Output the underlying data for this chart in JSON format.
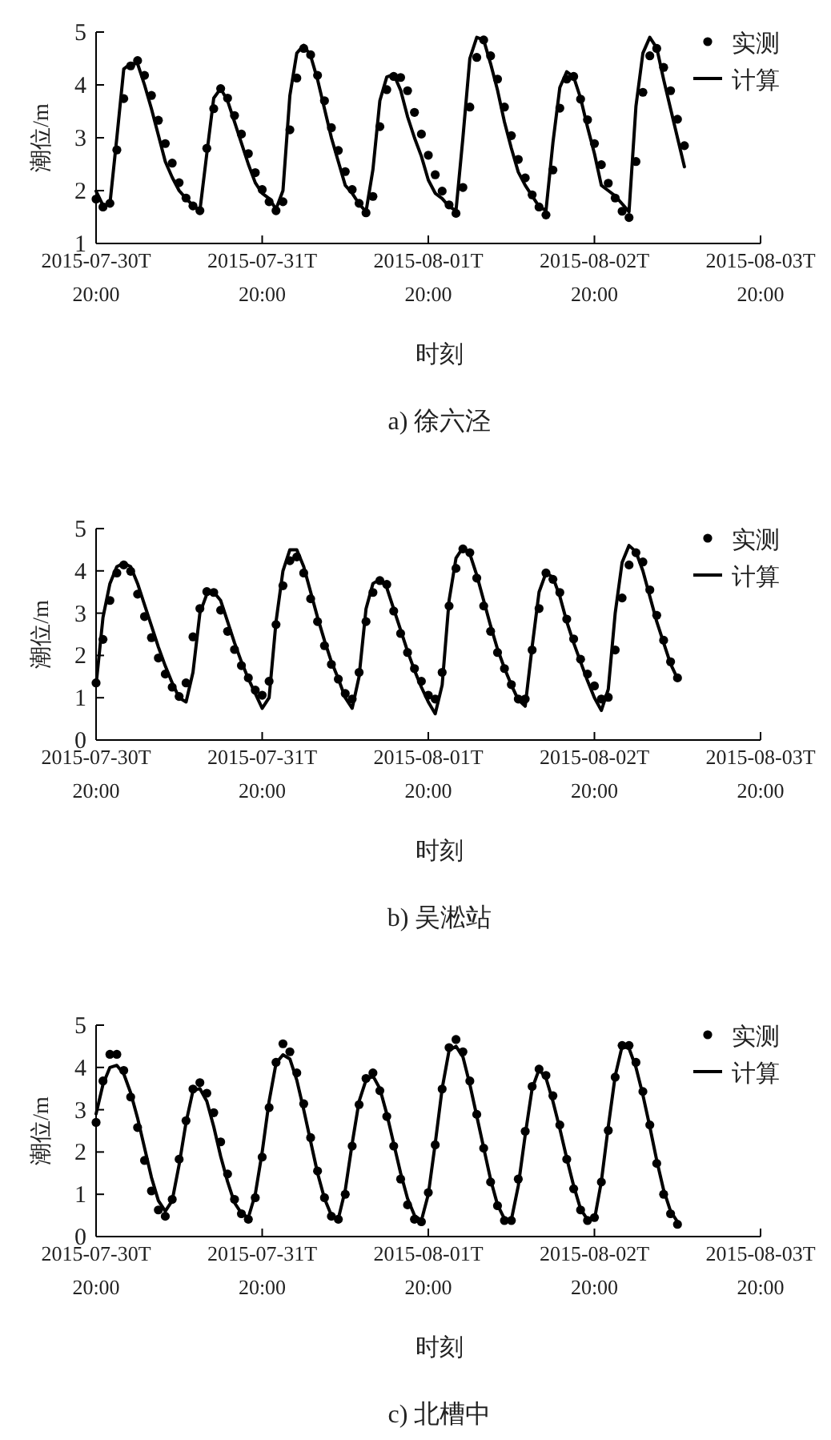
{
  "chart_data": [
    {
      "type": "line",
      "title": "a) 徐六泾",
      "xlabel": "时刻",
      "ylabel": "潮位/m",
      "legend": "top right",
      "x": [
        "2015-07-30T20:00",
        "2015-07-30T21:00",
        "2015-07-30T22:00",
        "2015-07-30T23:00",
        "2015-07-31T00:00",
        "2015-07-31T01:00",
        "2015-07-31T02:00",
        "2015-07-31T03:00",
        "2015-07-31T04:00",
        "2015-07-31T05:00",
        "2015-07-31T06:00",
        "2015-07-31T07:00",
        "2015-07-31T08:00",
        "2015-07-31T09:00",
        "2015-07-31T10:00",
        "2015-07-31T11:00",
        "2015-07-31T12:00",
        "2015-07-31T13:00",
        "2015-07-31T14:00",
        "2015-07-31T15:00",
        "2015-07-31T16:00",
        "2015-07-31T17:00",
        "2015-07-31T18:00",
        "2015-07-31T19:00",
        "2015-07-31T20:00",
        "2015-07-31T21:00",
        "2015-07-31T22:00",
        "2015-07-31T23:00",
        "2015-08-01T00:00",
        "2015-08-01T01:00",
        "2015-08-01T02:00",
        "2015-08-01T03:00",
        "2015-08-01T04:00",
        "2015-08-01T05:00",
        "2015-08-01T06:00",
        "2015-08-01T07:00",
        "2015-08-01T08:00",
        "2015-08-01T09:00",
        "2015-08-01T10:00",
        "2015-08-01T11:00",
        "2015-08-01T12:00",
        "2015-08-01T13:00",
        "2015-08-01T14:00",
        "2015-08-01T15:00",
        "2015-08-01T16:00",
        "2015-08-01T17:00",
        "2015-08-01T18:00",
        "2015-08-01T19:00",
        "2015-08-01T20:00",
        "2015-08-01T21:00",
        "2015-08-01T22:00",
        "2015-08-01T23:00",
        "2015-08-02T00:00",
        "2015-08-02T01:00",
        "2015-08-02T02:00",
        "2015-08-02T03:00",
        "2015-08-02T04:00",
        "2015-08-02T05:00",
        "2015-08-02T06:00",
        "2015-08-02T07:00",
        "2015-08-02T08:00",
        "2015-08-02T09:00",
        "2015-08-02T10:00",
        "2015-08-02T11:00",
        "2015-08-02T12:00",
        "2015-08-02T13:00",
        "2015-08-02T14:00",
        "2015-08-02T15:00",
        "2015-08-02T16:00",
        "2015-08-02T17:00",
        "2015-08-02T18:00",
        "2015-08-02T19:00",
        "2015-08-02T20:00",
        "2015-08-02T21:00",
        "2015-08-02T22:00",
        "2015-08-02T23:00",
        "2015-08-03T00:00",
        "2015-08-03T01:00",
        "2015-08-03T02:00",
        "2015-08-03T03:00",
        "2015-08-03T04:00",
        "2015-08-03T05:00",
        "2015-08-03T06:00",
        "2015-08-03T07:00",
        "2015-08-03T08:00",
        "2015-08-03T09:00"
      ],
      "xlim": [
        "2015-07-30T20:00",
        "2015-08-03T20:00"
      ],
      "xticks": [
        {
          "value": "2015-07-30T20:00",
          "label": "2015-07-30T 20:00"
        },
        {
          "value": "2015-07-31T20:00",
          "label": "2015-07-31T 20:00"
        },
        {
          "value": "2015-08-01T20:00",
          "label": "2015-08-01T 20:00"
        },
        {
          "value": "2015-08-02T20:00",
          "label": "2015-08-02T 20:00"
        },
        {
          "value": "2015-08-03T20:00",
          "label": "2015-08-03T 20:00"
        }
      ],
      "ylim": [
        1,
        5
      ],
      "yticks": [
        1,
        2,
        3,
        4,
        5
      ],
      "series": [
        {
          "name": "实测",
          "type": "scatter",
          "marker": "circle",
          "color": "#000000",
          "values": [
            1.84,
            1.69,
            1.76,
            2.77,
            3.74,
            4.36,
            4.46,
            4.18,
            3.8,
            3.33,
            2.89,
            2.52,
            2.15,
            1.86,
            1.71,
            1.62,
            2.8,
            3.55,
            3.93,
            3.75,
            3.42,
            3.07,
            2.7,
            2.34,
            2.02,
            1.79,
            1.62,
            1.79,
            3.15,
            4.13,
            4.69,
            4.57,
            4.18,
            3.7,
            3.19,
            2.76,
            2.36,
            2.02,
            1.76,
            1.58,
            1.89,
            3.21,
            3.91,
            4.16,
            4.14,
            3.89,
            3.48,
            3.07,
            2.67,
            2.3,
            1.99,
            1.73,
            1.57,
            2.06,
            3.58,
            4.52,
            4.85,
            4.55,
            4.11,
            3.58,
            3.04,
            2.59,
            2.24,
            1.92,
            1.69,
            1.54,
            2.39,
            3.56,
            4.11,
            4.16,
            3.73,
            3.34,
            2.89,
            2.49,
            2.14,
            1.86,
            1.61,
            1.49,
            2.55,
            3.86,
            4.55,
            4.69,
            4.33,
            3.89,
            3.35,
            2.85
          ]
        },
        {
          "name": "计算",
          "type": "line",
          "color": "#000000",
          "line_style": "solid",
          "values": [
            1.99,
            1.72,
            1.75,
            3.0,
            4.3,
            4.4,
            4.4,
            4.0,
            3.55,
            3.05,
            2.55,
            2.25,
            2.0,
            1.85,
            1.72,
            1.62,
            2.7,
            3.75,
            3.93,
            3.7,
            3.3,
            2.9,
            2.5,
            2.15,
            1.95,
            1.85,
            1.65,
            2.0,
            3.8,
            4.6,
            4.75,
            4.55,
            4.1,
            3.55,
            3.0,
            2.55,
            2.1,
            1.95,
            1.75,
            1.6,
            2.4,
            3.7,
            4.15,
            4.2,
            3.9,
            3.4,
            3.0,
            2.65,
            2.2,
            1.95,
            1.85,
            1.7,
            1.62,
            3.0,
            4.5,
            4.9,
            4.85,
            4.4,
            3.9,
            3.3,
            2.8,
            2.35,
            2.1,
            1.9,
            1.7,
            1.62,
            2.9,
            3.95,
            4.25,
            4.15,
            3.75,
            3.2,
            2.7,
            2.1,
            2.0,
            1.9,
            1.75,
            1.6,
            3.6,
            4.6,
            4.9,
            4.7,
            4.1,
            3.55,
            3.0,
            2.45
          ]
        }
      ]
    },
    {
      "type": "line",
      "title": "b) 吴淞站",
      "xlabel": "时刻",
      "ylabel": "潮位/m",
      "legend": "top right",
      "x": [
        "2015-07-30T20:00",
        "2015-07-30T21:00",
        "2015-07-30T22:00",
        "2015-07-30T23:00",
        "2015-07-31T00:00",
        "2015-07-31T01:00",
        "2015-07-31T02:00",
        "2015-07-31T03:00",
        "2015-07-31T04:00",
        "2015-07-31T05:00",
        "2015-07-31T06:00",
        "2015-07-31T07:00",
        "2015-07-31T08:00",
        "2015-07-31T09:00",
        "2015-07-31T10:00",
        "2015-07-31T11:00",
        "2015-07-31T12:00",
        "2015-07-31T13:00",
        "2015-07-31T14:00",
        "2015-07-31T15:00",
        "2015-07-31T16:00",
        "2015-07-31T17:00",
        "2015-07-31T18:00",
        "2015-07-31T19:00",
        "2015-07-31T20:00",
        "2015-07-31T21:00",
        "2015-07-31T22:00",
        "2015-07-31T23:00",
        "2015-08-01T00:00",
        "2015-08-01T01:00",
        "2015-08-01T02:00",
        "2015-08-01T03:00",
        "2015-08-01T04:00",
        "2015-08-01T05:00",
        "2015-08-01T06:00",
        "2015-08-01T07:00",
        "2015-08-01T08:00",
        "2015-08-01T09:00",
        "2015-08-01T10:00",
        "2015-08-01T11:00",
        "2015-08-01T12:00",
        "2015-08-01T13:00",
        "2015-08-01T14:00",
        "2015-08-01T15:00",
        "2015-08-01T16:00",
        "2015-08-01T17:00",
        "2015-08-01T18:00",
        "2015-08-01T19:00",
        "2015-08-01T20:00",
        "2015-08-01T21:00",
        "2015-08-01T22:00",
        "2015-08-01T23:00",
        "2015-08-02T00:00",
        "2015-08-02T01:00",
        "2015-08-02T02:00",
        "2015-08-02T03:00",
        "2015-08-02T04:00",
        "2015-08-02T05:00",
        "2015-08-02T06:00",
        "2015-08-02T07:00",
        "2015-08-02T08:00",
        "2015-08-02T09:00",
        "2015-08-02T10:00",
        "2015-08-02T11:00",
        "2015-08-02T12:00",
        "2015-08-02T13:00",
        "2015-08-02T14:00",
        "2015-08-02T15:00",
        "2015-08-02T16:00",
        "2015-08-02T17:00",
        "2015-08-02T18:00",
        "2015-08-02T19:00",
        "2015-08-02T20:00",
        "2015-08-02T21:00",
        "2015-08-02T22:00",
        "2015-08-02T23:00",
        "2015-08-03T00:00",
        "2015-08-03T01:00",
        "2015-08-03T02:00",
        "2015-08-03T03:00",
        "2015-08-03T04:00",
        "2015-08-03T05:00",
        "2015-08-03T06:00",
        "2015-08-03T07:00",
        "2015-08-03T08:00"
      ],
      "xlim": [
        "2015-07-30T20:00",
        "2015-08-03T20:00"
      ],
      "xticks": [
        {
          "value": "2015-07-30T20:00",
          "label": "2015-07-30T 20:00"
        },
        {
          "value": "2015-07-31T20:00",
          "label": "2015-07-31T 20:00"
        },
        {
          "value": "2015-08-01T20:00",
          "label": "2015-08-01T 20:00"
        },
        {
          "value": "2015-08-02T20:00",
          "label": "2015-08-02T 20:00"
        },
        {
          "value": "2015-08-03T20:00",
          "label": "2015-08-03T 20:00"
        }
      ],
      "ylim": [
        0,
        5
      ],
      "yticks": [
        0,
        1,
        2,
        3,
        4,
        5
      ],
      "series": [
        {
          "name": "实测",
          "type": "scatter",
          "marker": "circle",
          "color": "#000000",
          "values": [
            1.35,
            2.38,
            3.3,
            3.95,
            4.14,
            3.99,
            3.45,
            2.92,
            2.42,
            1.94,
            1.56,
            1.25,
            1.03,
            1.35,
            2.44,
            3.11,
            3.51,
            3.49,
            3.07,
            2.57,
            2.14,
            1.76,
            1.47,
            1.18,
            1.06,
            1.39,
            2.73,
            3.65,
            4.24,
            4.33,
            3.95,
            3.34,
            2.8,
            2.23,
            1.79,
            1.44,
            1.1,
            0.97,
            1.6,
            2.8,
            3.49,
            3.77,
            3.68,
            3.05,
            2.52,
            2.07,
            1.69,
            1.39,
            1.06,
            0.97,
            1.6,
            3.17,
            4.06,
            4.52,
            4.43,
            3.83,
            3.17,
            2.57,
            2.07,
            1.69,
            1.31,
            0.97,
            0.97,
            2.13,
            3.11,
            3.95,
            3.8,
            3.49,
            2.86,
            2.39,
            1.91,
            1.56,
            1.28,
            0.97,
            1.01,
            2.13,
            3.36,
            4.14,
            4.43,
            4.21,
            3.55,
            2.95,
            2.36,
            1.85,
            1.47
          ]
        },
        {
          "name": "计算",
          "type": "line",
          "color": "#000000",
          "line_style": "solid",
          "values": [
            1.3,
            2.9,
            3.7,
            4.1,
            4.18,
            4.1,
            3.7,
            3.2,
            2.7,
            2.2,
            1.75,
            1.35,
            1.0,
            0.9,
            1.6,
            3.0,
            3.45,
            3.5,
            3.3,
            2.8,
            2.3,
            1.85,
            1.45,
            1.1,
            0.75,
            1.0,
            2.8,
            4.0,
            4.5,
            4.5,
            4.1,
            3.5,
            2.9,
            2.35,
            1.85,
            1.45,
            1.0,
            0.75,
            1.5,
            3.1,
            3.7,
            3.8,
            3.6,
            3.1,
            2.6,
            2.1,
            1.65,
            1.25,
            0.9,
            0.62,
            1.3,
            3.3,
            4.3,
            4.55,
            4.4,
            3.9,
            3.3,
            2.7,
            2.15,
            1.7,
            1.3,
            0.95,
            0.8,
            2.2,
            3.5,
            3.95,
            3.85,
            3.4,
            2.8,
            2.3,
            1.85,
            1.4,
            1.0,
            0.7,
            1.2,
            3.0,
            4.2,
            4.6,
            4.45,
            4.0,
            3.4,
            2.8,
            2.3,
            1.8,
            1.45
          ]
        }
      ]
    },
    {
      "type": "line",
      "title": "c) 北槽中",
      "xlabel": "时刻",
      "ylabel": "潮位/m",
      "legend": "top right",
      "x": [
        "2015-07-30T20:00",
        "2015-07-30T21:00",
        "2015-07-30T22:00",
        "2015-07-30T23:00",
        "2015-07-31T00:00",
        "2015-07-31T01:00",
        "2015-07-31T02:00",
        "2015-07-31T03:00",
        "2015-07-31T04:00",
        "2015-07-31T05:00",
        "2015-07-31T06:00",
        "2015-07-31T07:00",
        "2015-07-31T08:00",
        "2015-07-31T09:00",
        "2015-07-31T10:00",
        "2015-07-31T11:00",
        "2015-07-31T12:00",
        "2015-07-31T13:00",
        "2015-07-31T14:00",
        "2015-07-31T15:00",
        "2015-07-31T16:00",
        "2015-07-31T17:00",
        "2015-07-31T18:00",
        "2015-07-31T19:00",
        "2015-07-31T20:00",
        "2015-07-31T21:00",
        "2015-07-31T22:00",
        "2015-07-31T23:00",
        "2015-08-01T00:00",
        "2015-08-01T01:00",
        "2015-08-01T02:00",
        "2015-08-01T03:00",
        "2015-08-01T04:00",
        "2015-08-01T05:00",
        "2015-08-01T06:00",
        "2015-08-01T07:00",
        "2015-08-01T08:00",
        "2015-08-01T09:00",
        "2015-08-01T10:00",
        "2015-08-01T11:00",
        "2015-08-01T12:00",
        "2015-08-01T13:00",
        "2015-08-01T14:00",
        "2015-08-01T15:00",
        "2015-08-01T16:00",
        "2015-08-01T17:00",
        "2015-08-01T18:00",
        "2015-08-01T19:00",
        "2015-08-01T20:00",
        "2015-08-01T21:00",
        "2015-08-01T22:00",
        "2015-08-01T23:00",
        "2015-08-02T00:00",
        "2015-08-02T01:00",
        "2015-08-02T02:00",
        "2015-08-02T03:00",
        "2015-08-02T04:00",
        "2015-08-02T05:00",
        "2015-08-02T06:00",
        "2015-08-02T07:00",
        "2015-08-02T08:00",
        "2015-08-02T09:00",
        "2015-08-02T10:00",
        "2015-08-02T11:00",
        "2015-08-02T12:00",
        "2015-08-02T13:00",
        "2015-08-02T14:00",
        "2015-08-02T15:00",
        "2015-08-02T16:00",
        "2015-08-02T17:00",
        "2015-08-02T18:00",
        "2015-08-02T19:00",
        "2015-08-02T20:00",
        "2015-08-02T21:00",
        "2015-08-02T22:00",
        "2015-08-02T23:00",
        "2015-08-03T00:00",
        "2015-08-03T01:00",
        "2015-08-03T02:00",
        "2015-08-03T03:00",
        "2015-08-03T04:00",
        "2015-08-03T05:00",
        "2015-08-03T06:00",
        "2015-08-03T07:00",
        "2015-08-03T08:00"
      ],
      "xlim": [
        "2015-07-30T20:00",
        "2015-08-03T20:00"
      ],
      "xticks": [
        {
          "value": "2015-07-30T20:00",
          "label": "2015-07-30T 20:00"
        },
        {
          "value": "2015-07-31T20:00",
          "label": "2015-07-31T 20:00"
        },
        {
          "value": "2015-08-01T20:00",
          "label": "2015-08-01T 20:00"
        },
        {
          "value": "2015-08-02T20:00",
          "label": "2015-08-02T 20:00"
        },
        {
          "value": "2015-08-03T20:00",
          "label": "2015-08-03T 20:00"
        }
      ],
      "ylim": [
        0,
        5
      ],
      "yticks": [
        0,
        1,
        2,
        3,
        4,
        5
      ],
      "series": [
        {
          "name": "实测",
          "type": "scatter",
          "marker": "circle",
          "color": "#000000",
          "values": [
            2.7,
            3.68,
            4.31,
            4.31,
            3.93,
            3.3,
            2.58,
            1.8,
            1.08,
            0.63,
            0.48,
            0.88,
            1.83,
            2.74,
            3.49,
            3.64,
            3.39,
            2.93,
            2.24,
            1.48,
            0.88,
            0.54,
            0.41,
            0.92,
            1.88,
            3.05,
            4.12,
            4.56,
            4.37,
            3.87,
            3.14,
            2.34,
            1.55,
            0.92,
            0.48,
            0.41,
            1.0,
            2.14,
            3.12,
            3.74,
            3.87,
            3.45,
            2.84,
            2.14,
            1.36,
            0.75,
            0.41,
            0.35,
            1.04,
            2.17,
            3.49,
            4.47,
            4.66,
            4.37,
            3.68,
            2.89,
            2.09,
            1.29,
            0.73,
            0.38,
            0.38,
            1.36,
            2.49,
            3.55,
            3.96,
            3.81,
            3.33,
            2.64,
            1.83,
            1.13,
            0.63,
            0.38,
            0.45,
            1.29,
            2.51,
            3.77,
            4.52,
            4.52,
            4.12,
            3.43,
            2.64,
            1.73,
            1.0,
            0.54,
            0.29
          ]
        },
        {
          "name": "计算",
          "type": "line",
          "color": "#000000",
          "line_style": "solid",
          "values": [
            2.9,
            3.6,
            4.0,
            4.05,
            3.85,
            3.4,
            2.8,
            2.1,
            1.4,
            0.85,
            0.6,
            0.85,
            1.7,
            2.7,
            3.45,
            3.5,
            3.2,
            2.6,
            1.9,
            1.3,
            0.8,
            0.55,
            0.45,
            1.0,
            2.0,
            3.2,
            4.1,
            4.3,
            4.2,
            3.7,
            3.0,
            2.25,
            1.5,
            0.9,
            0.5,
            0.42,
            1.1,
            2.2,
            3.2,
            3.7,
            3.8,
            3.5,
            2.9,
            2.2,
            1.5,
            0.9,
            0.5,
            0.38,
            1.0,
            2.2,
            3.5,
            4.4,
            4.5,
            4.25,
            3.6,
            2.85,
            2.1,
            1.35,
            0.75,
            0.42,
            0.4,
            1.2,
            2.4,
            3.5,
            3.95,
            3.75,
            3.2,
            2.55,
            1.85,
            1.2,
            0.65,
            0.4,
            0.4,
            1.3,
            2.6,
            3.8,
            4.5,
            4.45,
            4.0,
            3.35,
            2.6,
            1.8,
            1.1,
            0.6,
            0.35
          ]
        }
      ]
    }
  ]
}
